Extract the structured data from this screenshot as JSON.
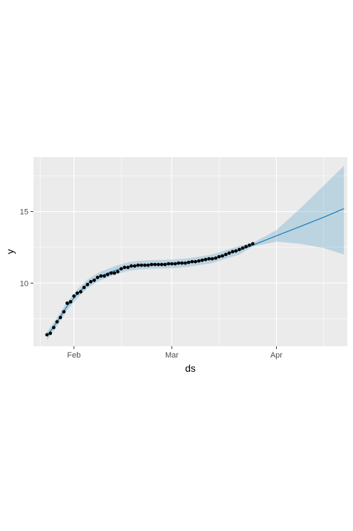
{
  "chart_data": {
    "type": "line",
    "title": "",
    "xlabel": "ds",
    "ylabel": "y",
    "x_axis": {
      "type": "date",
      "range": [
        "2020-01-20",
        "2020-04-22"
      ],
      "tick_dates": [
        "2020-02-01",
        "2020-03-01",
        "2020-04-01"
      ],
      "tick_labels": [
        "Feb",
        "Mar",
        "Apr"
      ],
      "minor_grid_dates": [
        "2020-01-22",
        "2020-02-15",
        "2020-03-15",
        "2020-04-15"
      ]
    },
    "y_axis": {
      "range": [
        5.6,
        18.8
      ],
      "ticks": [
        10,
        15
      ],
      "tick_labels": [
        "10",
        "15"
      ],
      "minor_grid": [
        7.5,
        12.5,
        17.5
      ]
    },
    "grid": true,
    "legend": "none",
    "colors": {
      "panel_background": "#ebebeb",
      "grid": "#ffffff",
      "forecast_line": "#0072b2",
      "uncertainty_band": "#0072b2",
      "observed_points": "#000000"
    },
    "observed": {
      "name": "",
      "x": [
        "2020-01-24",
        "2020-01-25",
        "2020-01-26",
        "2020-01-27",
        "2020-01-28",
        "2020-01-29",
        "2020-01-30",
        "2020-01-31",
        "2020-02-01",
        "2020-02-02",
        "2020-02-03",
        "2020-02-04",
        "2020-02-05",
        "2020-02-06",
        "2020-02-07",
        "2020-02-08",
        "2020-02-09",
        "2020-02-10",
        "2020-02-11",
        "2020-02-12",
        "2020-02-13",
        "2020-02-14",
        "2020-02-15",
        "2020-02-16",
        "2020-02-17",
        "2020-02-18",
        "2020-02-19",
        "2020-02-20",
        "2020-02-21",
        "2020-02-22",
        "2020-02-23",
        "2020-02-24",
        "2020-02-25",
        "2020-02-26",
        "2020-02-27",
        "2020-02-28",
        "2020-02-29",
        "2020-03-01",
        "2020-03-02",
        "2020-03-03",
        "2020-03-04",
        "2020-03-05",
        "2020-03-06",
        "2020-03-07",
        "2020-03-08",
        "2020-03-09",
        "2020-03-10",
        "2020-03-11",
        "2020-03-12",
        "2020-03-13",
        "2020-03-14",
        "2020-03-15",
        "2020-03-16",
        "2020-03-17",
        "2020-03-18",
        "2020-03-19",
        "2020-03-20",
        "2020-03-21",
        "2020-03-22",
        "2020-03-23",
        "2020-03-24",
        "2020-03-25"
      ],
      "y": [
        6.4,
        6.5,
        6.9,
        7.3,
        7.6,
        8.0,
        8.6,
        8.7,
        9.1,
        9.3,
        9.4,
        9.7,
        9.9,
        10.1,
        10.2,
        10.4,
        10.5,
        10.5,
        10.6,
        10.7,
        10.7,
        10.8,
        11.0,
        11.1,
        11.1,
        11.2,
        11.2,
        11.25,
        11.25,
        11.25,
        11.25,
        11.3,
        11.3,
        11.3,
        11.3,
        11.3,
        11.35,
        11.35,
        11.35,
        11.4,
        11.4,
        11.4,
        11.45,
        11.5,
        11.5,
        11.55,
        11.6,
        11.65,
        11.7,
        11.7,
        11.75,
        11.85,
        11.9,
        12.0,
        12.1,
        12.2,
        12.25,
        12.35,
        12.45,
        12.55,
        12.65,
        12.75
      ]
    },
    "forecast": {
      "name": "",
      "x": [
        "2020-01-24",
        "2020-01-27",
        "2020-01-30",
        "2020-02-02",
        "2020-02-05",
        "2020-02-08",
        "2020-02-11",
        "2020-02-14",
        "2020-02-17",
        "2020-02-20",
        "2020-02-23",
        "2020-02-26",
        "2020-03-01",
        "2020-03-05",
        "2020-03-09",
        "2020-03-13",
        "2020-03-17",
        "2020-03-21",
        "2020-03-25",
        "2020-04-01",
        "2020-04-08",
        "2020-04-15",
        "2020-04-21"
      ],
      "yhat": [
        6.3,
        7.3,
        8.4,
        9.25,
        9.95,
        10.4,
        10.7,
        10.95,
        11.15,
        11.25,
        11.3,
        11.32,
        11.35,
        11.42,
        11.55,
        11.7,
        12.0,
        12.3,
        12.65,
        13.3,
        13.95,
        14.6,
        15.2
      ],
      "lower": [
        6.0,
        7.0,
        8.1,
        8.95,
        9.65,
        10.1,
        10.4,
        10.65,
        10.85,
        10.95,
        11.0,
        11.02,
        11.05,
        11.12,
        11.25,
        11.4,
        11.7,
        12.0,
        12.55,
        12.9,
        12.75,
        12.45,
        12.0
      ],
      "upper": [
        6.6,
        7.6,
        8.7,
        9.55,
        10.25,
        10.7,
        11.0,
        11.25,
        11.45,
        11.55,
        11.6,
        11.62,
        11.65,
        11.72,
        11.85,
        12.0,
        12.3,
        12.6,
        12.8,
        13.7,
        15.2,
        16.8,
        18.2
      ]
    }
  }
}
